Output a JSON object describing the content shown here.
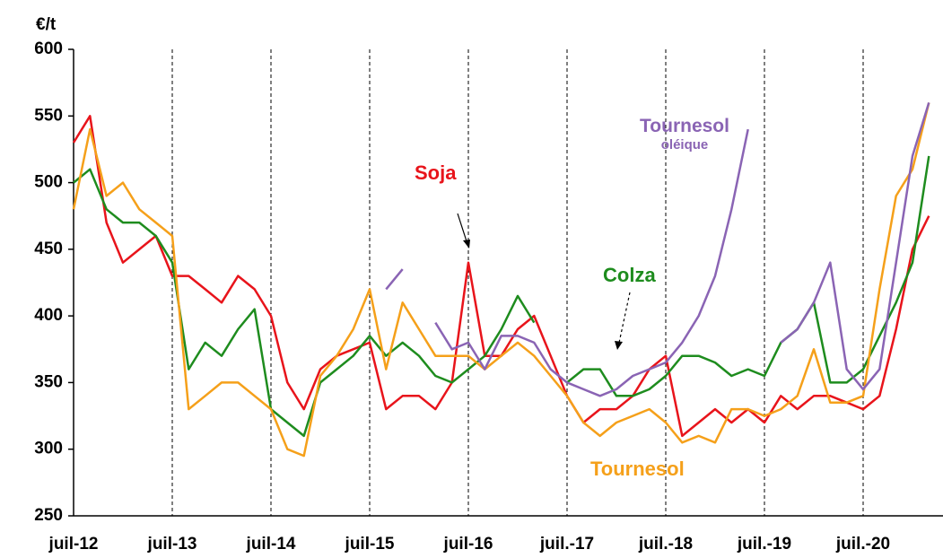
{
  "chart_data": {
    "type": "line",
    "ylabel": "€/t",
    "categories": [
      "juil-12",
      null,
      null,
      null,
      null,
      null,
      "juil-13",
      null,
      null,
      null,
      null,
      null,
      "juil-14",
      null,
      null,
      null,
      null,
      null,
      "juil-15",
      null,
      null,
      null,
      null,
      null,
      "juil-16",
      null,
      null,
      null,
      null,
      null,
      "juil.-17",
      null,
      null,
      null,
      null,
      null,
      "juil.-18",
      null,
      null,
      null,
      null,
      null,
      "juil.-19",
      null,
      null,
      null,
      null,
      null,
      "juil.-20",
      null,
      null,
      null,
      null
    ],
    "series": [
      {
        "name": "Soja",
        "color": "#e8141b",
        "values": [
          530,
          550,
          470,
          440,
          450,
          460,
          430,
          430,
          420,
          410,
          430,
          420,
          400,
          350,
          330,
          360,
          370,
          375,
          380,
          330,
          340,
          340,
          330,
          350,
          440,
          370,
          370,
          390,
          400,
          370,
          340,
          320,
          330,
          330,
          340,
          360,
          370,
          310,
          320,
          330,
          320,
          330,
          320,
          340,
          330,
          340,
          340,
          335,
          330,
          340,
          390,
          450,
          475
        ]
      },
      {
        "name": "Colza",
        "color": "#1e8c1e",
        "values": [
          500,
          510,
          480,
          470,
          470,
          460,
          440,
          360,
          380,
          370,
          390,
          405,
          330,
          320,
          310,
          350,
          360,
          370,
          385,
          370,
          380,
          370,
          355,
          350,
          360,
          370,
          390,
          415,
          395,
          null,
          350,
          360,
          360,
          340,
          340,
          345,
          355,
          370,
          370,
          365,
          355,
          360,
          355,
          380,
          390,
          410,
          350,
          350,
          360,
          385,
          410,
          440,
          520
        ]
      },
      {
        "name": "Tournesol",
        "color": "#f5a01a",
        "values": [
          480,
          540,
          490,
          500,
          480,
          470,
          460,
          330,
          340,
          350,
          350,
          340,
          330,
          300,
          295,
          355,
          370,
          390,
          420,
          360,
          410,
          390,
          370,
          370,
          370,
          360,
          370,
          380,
          370,
          355,
          340,
          320,
          310,
          320,
          325,
          330,
          320,
          305,
          310,
          305,
          330,
          330,
          325,
          330,
          340,
          375,
          335,
          335,
          340,
          420,
          490,
          510,
          560
        ]
      },
      {
        "name": "Tournesol oléique",
        "color": "#8a64b4",
        "values": [
          null,
          null,
          null,
          null,
          null,
          null,
          null,
          null,
          null,
          null,
          null,
          null,
          null,
          null,
          null,
          null,
          null,
          null,
          null,
          420,
          435,
          null,
          395,
          375,
          380,
          360,
          385,
          385,
          380,
          360,
          350,
          345,
          340,
          345,
          355,
          360,
          365,
          380,
          400,
          430,
          480,
          540,
          null,
          380,
          390,
          410,
          440,
          360,
          345,
          360,
          440,
          520,
          560
        ]
      }
    ],
    "ylim": [
      250,
      600
    ],
    "yticks": [
      250,
      300,
      350,
      400,
      450,
      500,
      550,
      600
    ],
    "xgrid": true
  }
}
